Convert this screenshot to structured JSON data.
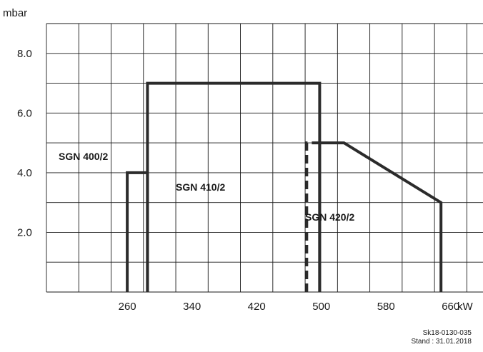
{
  "chart_data": {
    "type": "area",
    "y_unit": "mbar",
    "x_unit": "kW",
    "xlim": [
      160,
      700
    ],
    "ylim": [
      0,
      9
    ],
    "x_ticks": [
      260,
      340,
      420,
      500,
      580,
      660
    ],
    "y_ticks": [
      2.0,
      4.0,
      6.0,
      8.0
    ],
    "y_tick_labels": [
      "2.0",
      "4.0",
      "6.0",
      "8.0"
    ],
    "grid": true,
    "series": [
      {
        "name": "SGN 400/2",
        "line_style": "solid",
        "points": [
          [
            260,
            0
          ],
          [
            260,
            4.0
          ],
          [
            285,
            4.0
          ],
          [
            285,
            0
          ]
        ]
      },
      {
        "name": "SGN 410/2",
        "line_style": "solid",
        "points": [
          [
            285,
            0
          ],
          [
            285,
            7.0
          ],
          [
            498,
            7.0
          ],
          [
            498,
            0
          ]
        ]
      },
      {
        "name": "SGN 420/2",
        "line_style": "solid",
        "points": [
          [
            498,
            0
          ],
          [
            498,
            5.0
          ],
          [
            528,
            5.0
          ],
          [
            648,
            3.0
          ],
          [
            648,
            0
          ]
        ]
      },
      {
        "name": "SGN 420/2 (dashed start)",
        "line_style": "dashed",
        "points": [
          [
            482,
            0
          ],
          [
            482,
            5.0
          ],
          [
            498,
            5.0
          ]
        ]
      }
    ],
    "colors": {
      "line": "#2b2b2b",
      "grid": "#1a1a1a"
    }
  },
  "footer": {
    "ref": "Sk18-0130-035",
    "stand": "Stand : 31.01.2018"
  }
}
